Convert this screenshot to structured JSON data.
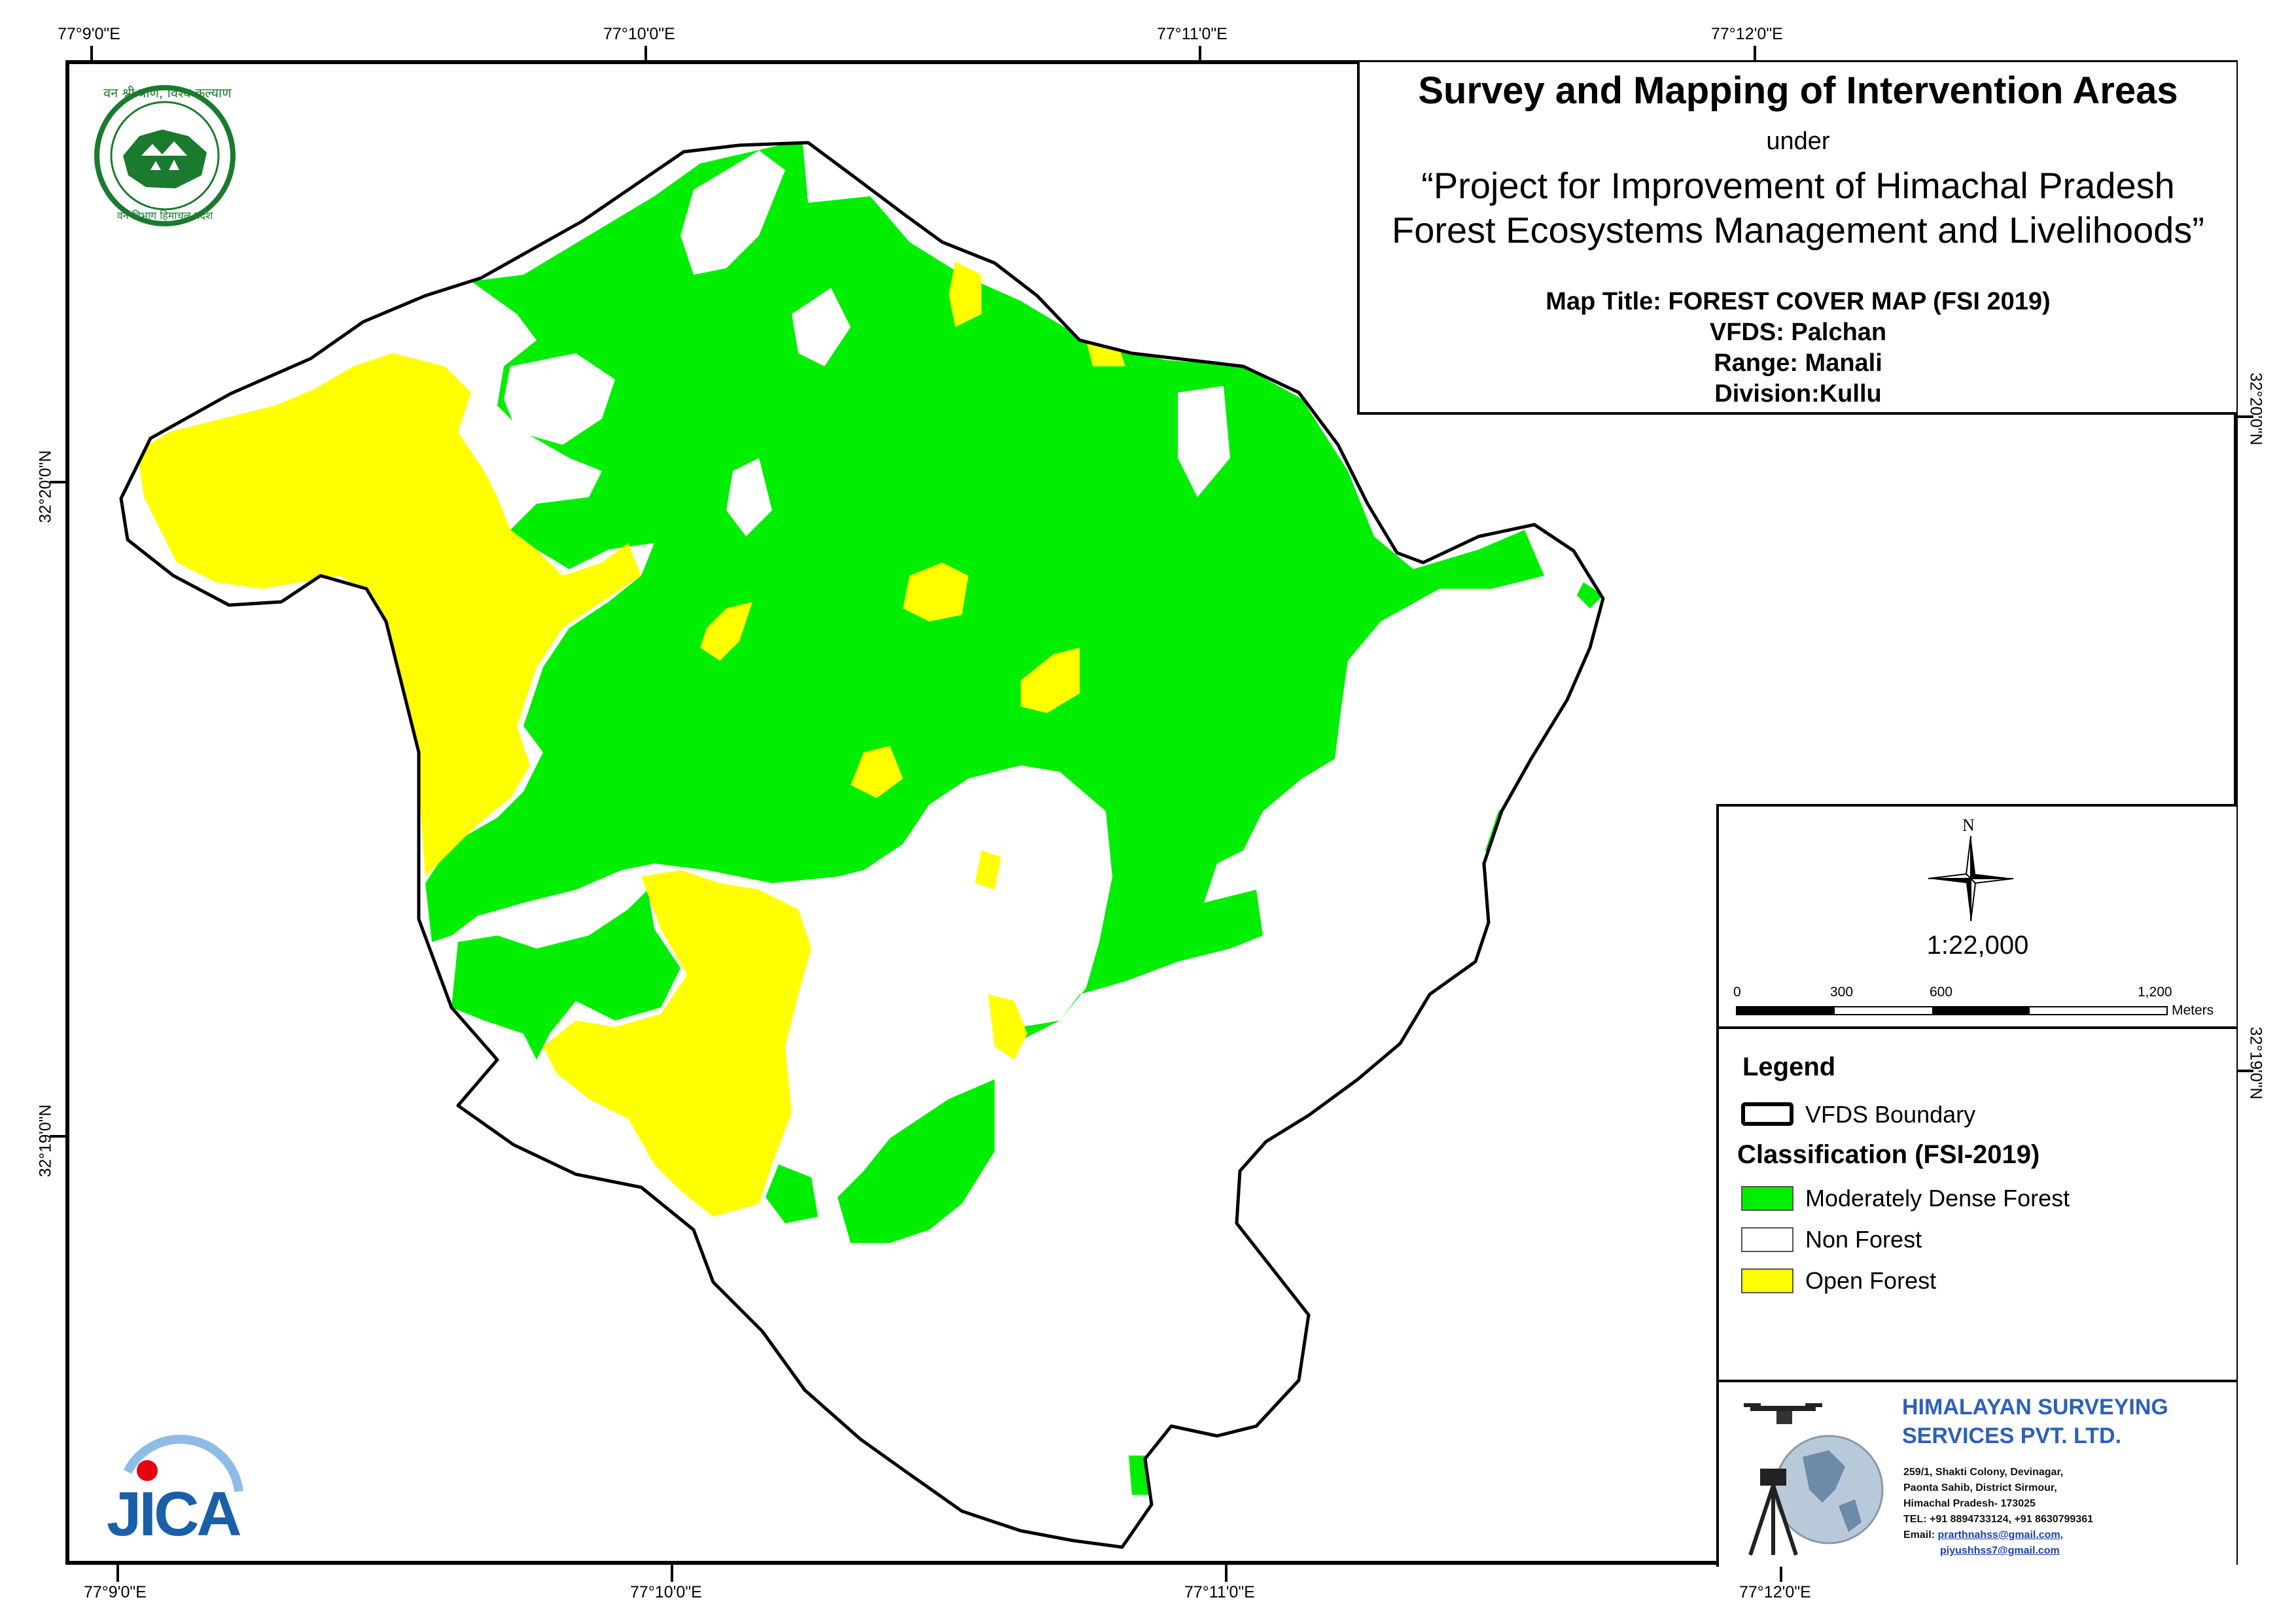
{
  "colors": {
    "moderately_dense_forest": "#00ee00",
    "non_forest": "#ffffff",
    "open_forest": "#ffff00",
    "boundary": "#000000",
    "company_blue": "#2e60b8",
    "emblem_green": "#1a7a2e",
    "jica_blue": "#1a5fa8",
    "jica_red": "#e60012"
  },
  "coordinates": {
    "top": [
      "77°9'0\"E",
      "77°10'0\"E",
      "77°11'0\"E",
      "77°12'0\"E"
    ],
    "bottom": [
      "77°9'0\"E",
      "77°10'0\"E",
      "77°11'0\"E",
      "77°12'0\"E"
    ],
    "left": [
      "32°20'0\"N",
      "32°19'0\"N"
    ],
    "right": [
      "32°20'0\"N",
      "32°19'0\"N"
    ]
  },
  "title": {
    "main": "Survey and Mapping of Intervention Areas",
    "under": "under",
    "project_line1": "“Project for Improvement of Himachal Pradesh",
    "project_line2": "Forest Ecosystems Management and Livelihoods”"
  },
  "map_info": {
    "title": "Map Title: FOREST COVER MAP (FSI 2019)",
    "vfds": "VFDS: Palchan",
    "range": "Range: Manali",
    "division": "Division:Kullu"
  },
  "north_arrow": {
    "label": "N",
    "icon": "compass-rose-icon"
  },
  "scale": {
    "ratio": "1:22,000",
    "ticks": [
      "0",
      "300",
      "600",
      "1,200"
    ],
    "unit": "Meters"
  },
  "legend": {
    "heading": "Legend",
    "boundary_label": "VFDS Boundary",
    "classification_heading": "Classification (FSI-2019)",
    "classes": [
      {
        "label": "Moderately Dense Forest",
        "color": "#00ee00"
      },
      {
        "label": "Non Forest",
        "color": "#ffffff"
      },
      {
        "label": "Open Forest",
        "color": "#ffff00"
      }
    ]
  },
  "emblem": {
    "top_text": "वन श्री त्राण, विश्व कल्याण",
    "bottom_text": "वन विभाग हिमाचल प्रदेश"
  },
  "jica": {
    "logo_text": "JICA"
  },
  "company": {
    "name_line1": "HIMALAYAN SURVEYING",
    "name_line2": "SERVICES PVT. LTD.",
    "address_lines": [
      "259/1, Shakti Colony, Devinagar,",
      "Paonta Sahib, District Sirmour,",
      "Himachal Pradesh- 173025",
      "TEL: +91 8894733124, +91 8630799361"
    ],
    "email_label": "Email:",
    "emails": [
      "prarthnahss@gmail.com,",
      "piyushhss7@gmail.com"
    ]
  }
}
